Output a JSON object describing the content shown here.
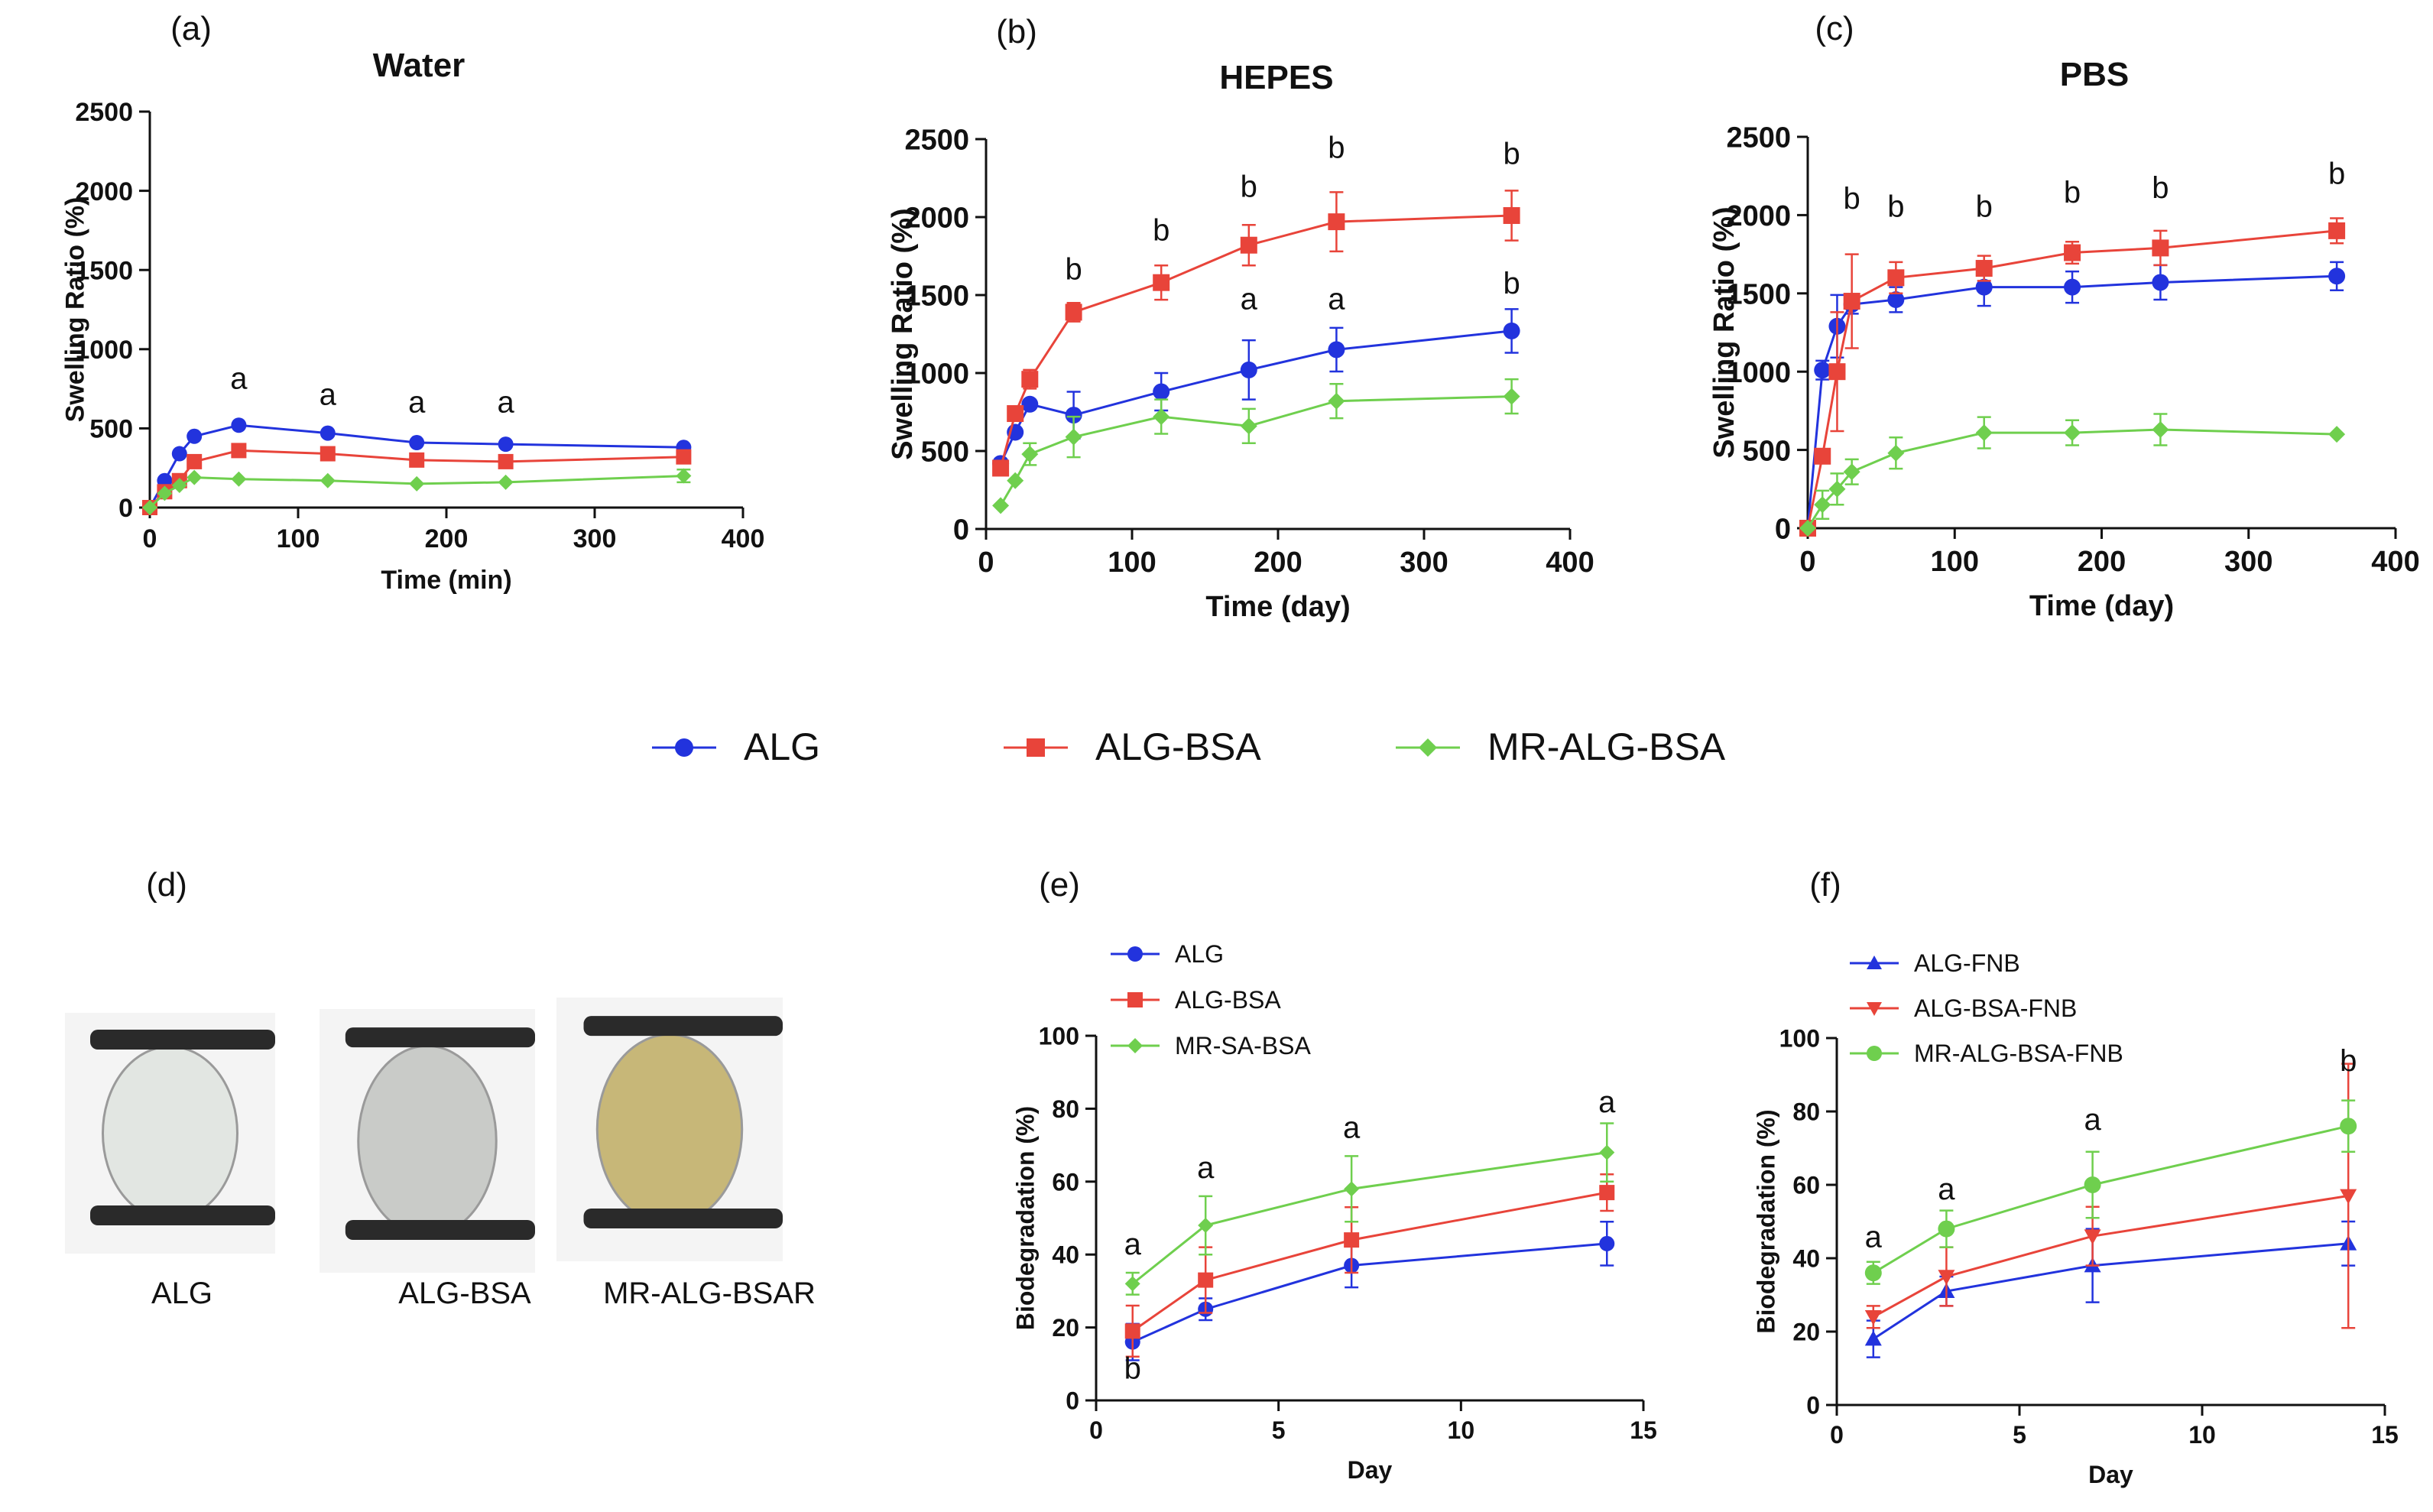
{
  "colors": {
    "ALG": "#2233dd",
    "ALG-BSA": "#e8443a",
    "MR-ALG-BSA": "#6fcf4e",
    "axis": "#111111"
  },
  "legend": [
    {
      "label": "ALG",
      "color": "#2233dd",
      "marker": "circle"
    },
    {
      "label": "ALG-BSA",
      "color": "#e8443a",
      "marker": "square"
    },
    {
      "label": "MR-ALG-BSA",
      "color": "#6fcf4e",
      "marker": "diamond"
    }
  ],
  "photos": {
    "panel_label": "(d)",
    "items": [
      {
        "caption": "ALG",
        "tint": "#e2e6e2"
      },
      {
        "caption": "ALG-BSA",
        "tint": "#c9cbc8"
      },
      {
        "caption": "MR-ALG-BSAR",
        "tint": "#c7b778"
      }
    ]
  },
  "chart_data": [
    {
      "type": "line",
      "panel_label": "(a)",
      "title": "Water",
      "xlabel": "Time (min)",
      "ylabel": "Swelling Ratio (%)",
      "xlim": [
        0,
        400
      ],
      "ylim": [
        0,
        2500
      ],
      "xticks": [
        0,
        100,
        200,
        300,
        400
      ],
      "yticks": [
        0,
        500,
        1000,
        1500,
        2000,
        2500
      ],
      "grid": false,
      "series": [
        {
          "name": "ALG",
          "marker": "circle",
          "x": [
            0,
            10,
            20,
            30,
            60,
            120,
            180,
            240,
            360
          ],
          "y": [
            0,
            170,
            340,
            450,
            520,
            470,
            410,
            400,
            380
          ],
          "err": [
            0,
            0,
            0,
            0,
            0,
            0,
            0,
            0,
            0
          ]
        },
        {
          "name": "ALG-BSA",
          "marker": "square",
          "x": [
            0,
            10,
            20,
            30,
            60,
            120,
            180,
            240,
            360
          ],
          "y": [
            0,
            100,
            170,
            290,
            360,
            340,
            300,
            290,
            320
          ],
          "err": [
            0,
            0,
            0,
            0,
            0,
            0,
            0,
            0,
            0
          ]
        },
        {
          "name": "MR-ALG-BSA",
          "marker": "diamond",
          "x": [
            0,
            10,
            20,
            30,
            60,
            120,
            180,
            240,
            360
          ],
          "y": [
            0,
            90,
            140,
            190,
            180,
            170,
            150,
            160,
            200
          ],
          "err": [
            0,
            0,
            0,
            0,
            0,
            0,
            0,
            0,
            40
          ]
        }
      ],
      "annotations": [
        {
          "text": "a",
          "x": 60,
          "y": 750
        },
        {
          "text": "a",
          "x": 120,
          "y": 650
        },
        {
          "text": "a",
          "x": 180,
          "y": 600
        },
        {
          "text": "a",
          "x": 240,
          "y": 600
        }
      ]
    },
    {
      "type": "line",
      "panel_label": "(b)",
      "title": "HEPES",
      "xlabel": "Time (day)",
      "ylabel": "Swelling Ratio (%)",
      "xlim": [
        0,
        400
      ],
      "ylim": [
        0,
        2500
      ],
      "xticks": [
        0,
        100,
        200,
        300,
        400
      ],
      "yticks": [
        0,
        500,
        1000,
        1500,
        2000,
        2500
      ],
      "grid": false,
      "series": [
        {
          "name": "ALG",
          "marker": "circle",
          "x": [
            10,
            20,
            30,
            60,
            120,
            180,
            240,
            360
          ],
          "y": [
            420,
            620,
            800,
            730,
            880,
            1020,
            1150,
            1270
          ],
          "err": [
            0,
            0,
            0,
            150,
            120,
            190,
            140,
            140
          ]
        },
        {
          "name": "ALG-BSA",
          "marker": "square",
          "x": [
            10,
            20,
            30,
            60,
            120,
            180,
            240,
            360
          ],
          "y": [
            390,
            740,
            960,
            1390,
            1580,
            1820,
            1970,
            2010
          ],
          "err": [
            0,
            0,
            60,
            60,
            110,
            130,
            190,
            160
          ]
        },
        {
          "name": "MR-ALG-BSA",
          "marker": "diamond",
          "x": [
            10,
            20,
            30,
            60,
            120,
            180,
            240,
            360
          ],
          "y": [
            150,
            310,
            480,
            590,
            720,
            660,
            820,
            850
          ],
          "err": [
            0,
            0,
            70,
            130,
            110,
            110,
            110,
            110
          ]
        }
      ],
      "annotations": [
        {
          "text": "b",
          "x": 60,
          "y": 1600
        },
        {
          "text": "b",
          "x": 120,
          "y": 1850
        },
        {
          "text": "b",
          "x": 180,
          "y": 2130
        },
        {
          "text": "b",
          "x": 240,
          "y": 2380
        },
        {
          "text": "b",
          "x": 360,
          "y": 2340
        },
        {
          "text": "a",
          "x": 180,
          "y": 1410
        },
        {
          "text": "a",
          "x": 240,
          "y": 1410
        },
        {
          "text": "b",
          "x": 360,
          "y": 1510
        }
      ]
    },
    {
      "type": "line",
      "panel_label": "(c)",
      "title": "PBS",
      "xlabel": "Time (day)",
      "ylabel": "Swelling Ratio (%)",
      "xlim": [
        0,
        400
      ],
      "ylim": [
        0,
        2500
      ],
      "xticks": [
        0,
        100,
        200,
        300,
        400
      ],
      "yticks": [
        0,
        500,
        1000,
        1500,
        2000,
        2500
      ],
      "grid": false,
      "series": [
        {
          "name": "ALG",
          "marker": "circle",
          "x": [
            0,
            10,
            20,
            30,
            60,
            120,
            180,
            240,
            360
          ],
          "y": [
            0,
            1010,
            1290,
            1430,
            1460,
            1540,
            1540,
            1570,
            1610
          ],
          "err": [
            0,
            60,
            200,
            60,
            80,
            120,
            100,
            110,
            90
          ]
        },
        {
          "name": "ALG-BSA",
          "marker": "square",
          "x": [
            0,
            10,
            20,
            30,
            60,
            120,
            180,
            240,
            360
          ],
          "y": [
            0,
            460,
            1000,
            1450,
            1600,
            1660,
            1760,
            1790,
            1900
          ],
          "err": [
            0,
            0,
            380,
            300,
            100,
            80,
            70,
            110,
            80
          ]
        },
        {
          "name": "MR-ALG-BSA",
          "marker": "diamond",
          "x": [
            0,
            10,
            20,
            30,
            60,
            120,
            180,
            240,
            360
          ],
          "y": [
            0,
            150,
            250,
            360,
            480,
            610,
            610,
            630,
            600
          ],
          "err": [
            0,
            90,
            100,
            80,
            100,
            100,
            80,
            100,
            0
          ]
        }
      ],
      "annotations": [
        {
          "text": "b",
          "x": 30,
          "y": 2040
        },
        {
          "text": "b",
          "x": 60,
          "y": 1990
        },
        {
          "text": "b",
          "x": 120,
          "y": 1990
        },
        {
          "text": "b",
          "x": 180,
          "y": 2080
        },
        {
          "text": "b",
          "x": 240,
          "y": 2110
        },
        {
          "text": "b",
          "x": 360,
          "y": 2200
        }
      ]
    },
    {
      "type": "line",
      "panel_label": "(e)",
      "title": "",
      "xlabel": "Day",
      "ylabel": "Biodegradation (%)",
      "xlim": [
        0,
        15
      ],
      "ylim": [
        0,
        100
      ],
      "xticks": [
        0,
        5,
        10,
        15
      ],
      "yticks": [
        0,
        20,
        40,
        60,
        80,
        100
      ],
      "grid": false,
      "legend": "top-left",
      "series": [
        {
          "name": "ALG",
          "marker": "circle",
          "x": [
            1,
            3,
            7,
            14
          ],
          "y": [
            16,
            25,
            37,
            43
          ],
          "err": [
            5,
            3,
            6,
            6
          ]
        },
        {
          "name": "ALG-BSA",
          "marker": "square",
          "x": [
            1,
            3,
            7,
            14
          ],
          "y": [
            19,
            33,
            44,
            57
          ],
          "err": [
            7,
            9,
            9,
            5
          ]
        },
        {
          "name": "MR-SA-BSA",
          "marker": "diamond",
          "x": [
            1,
            3,
            7,
            14
          ],
          "y": [
            32,
            48,
            58,
            68
          ],
          "err": [
            3,
            8,
            9,
            8
          ]
        }
      ],
      "annotations": [
        {
          "text": "a",
          "x": 1,
          "y": 40
        },
        {
          "text": "b",
          "x": 1,
          "y": 6
        },
        {
          "text": "a",
          "x": 3,
          "y": 61
        },
        {
          "text": "a",
          "x": 7,
          "y": 72
        },
        {
          "text": "a",
          "x": 14,
          "y": 79
        }
      ]
    },
    {
      "type": "line",
      "panel_label": "(f)",
      "title": "",
      "xlabel": "Day",
      "ylabel": "Biodegradation (%)",
      "xlim": [
        0,
        15
      ],
      "ylim": [
        0,
        100
      ],
      "xticks": [
        0,
        5,
        10,
        15
      ],
      "yticks": [
        0,
        20,
        40,
        60,
        80,
        100
      ],
      "grid": false,
      "legend": "top-left",
      "series": [
        {
          "name": "ALG-FNB",
          "marker": "triangle-up",
          "x": [
            1,
            3,
            7,
            14
          ],
          "y": [
            18,
            31,
            38,
            44
          ],
          "err": [
            5,
            4,
            10,
            6
          ]
        },
        {
          "name": "ALG-BSA-FNB",
          "marker": "triangle-down",
          "x": [
            1,
            3,
            7,
            14
          ],
          "y": [
            24,
            35,
            46,
            57
          ],
          "err": [
            3,
            8,
            8,
            36
          ]
        },
        {
          "name": "MR-ALG-BSA-FNB",
          "marker": "circle",
          "x": [
            1,
            3,
            7,
            14
          ],
          "y": [
            36,
            48,
            60,
            76
          ],
          "err": [
            3,
            5,
            9,
            7
          ]
        }
      ],
      "annotations": [
        {
          "text": "a",
          "x": 1,
          "y": 43
        },
        {
          "text": "a",
          "x": 3,
          "y": 56
        },
        {
          "text": "a",
          "x": 7,
          "y": 75
        },
        {
          "text": "b",
          "x": 14,
          "y": 91
        }
      ]
    }
  ]
}
